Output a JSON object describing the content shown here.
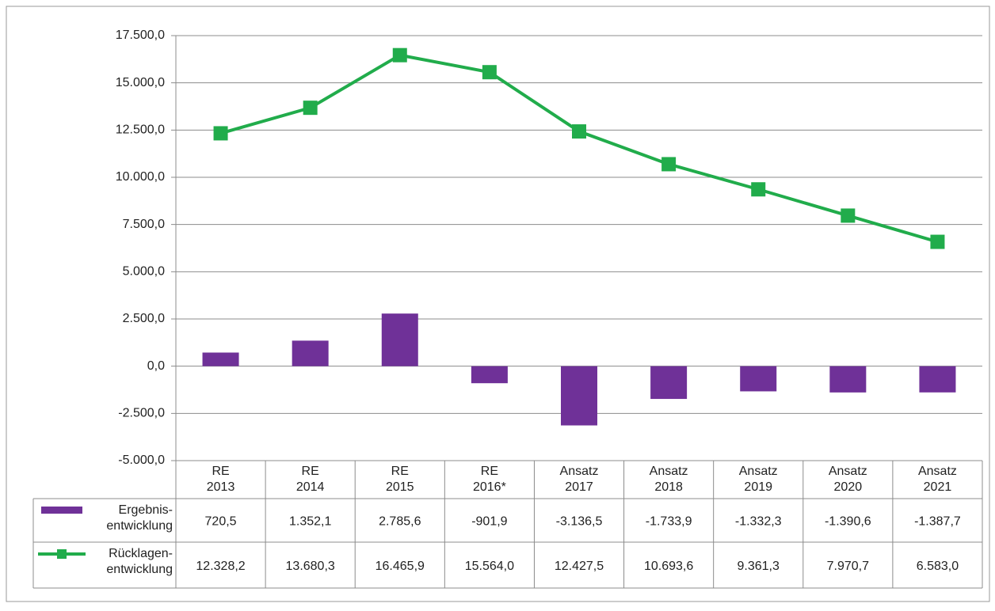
{
  "chart_data": {
    "type": "bar-line",
    "categories": [
      [
        "RE",
        "2013"
      ],
      [
        "RE",
        "2014"
      ],
      [
        "RE",
        "2015"
      ],
      [
        "RE",
        "2016*"
      ],
      [
        "Ansatz",
        "2017"
      ],
      [
        "Ansatz",
        "2018"
      ],
      [
        "Ansatz",
        "2019"
      ],
      [
        "Ansatz",
        "2020"
      ],
      [
        "Ansatz",
        "2021"
      ]
    ],
    "series": [
      {
        "name": [
          "Ergebnis-",
          "entwicklung"
        ],
        "type": "bar",
        "color": "#6f3198",
        "values": [
          720.5,
          1352.1,
          2785.6,
          -901.9,
          -3136.5,
          -1733.9,
          -1332.3,
          -1390.6,
          -1387.7
        ],
        "value_labels": [
          "720,5",
          "1.352,1",
          "2.785,6",
          "-901,9",
          "-3.136,5",
          "-1.733,9",
          "-1.332,3",
          "-1.390,6",
          "-1.387,7"
        ]
      },
      {
        "name": [
          "Rücklagen-",
          "entwicklung"
        ],
        "type": "line",
        "color": "#21ac4b",
        "values": [
          12328.2,
          13680.3,
          16465.9,
          15564.0,
          12427.5,
          10693.6,
          9361.3,
          7970.7,
          6583.0
        ],
        "value_labels": [
          "12.328,2",
          "13.680,3",
          "16.465,9",
          "15.564,0",
          "12.427,5",
          "10.693,6",
          "9.361,3",
          "7.970,7",
          "6.583,0"
        ]
      }
    ],
    "ylim": [
      -5000,
      17500
    ],
    "yticks": [
      {
        "value": -5000,
        "label": "-5.000,0"
      },
      {
        "value": -2500,
        "label": "-2.500,0"
      },
      {
        "value": 0,
        "label": "0,0"
      },
      {
        "value": 2500,
        "label": "2.500,0"
      },
      {
        "value": 5000,
        "label": "5.000,0"
      },
      {
        "value": 7500,
        "label": "7.500,0"
      },
      {
        "value": 10000,
        "label": "10.000,0"
      },
      {
        "value": 12500,
        "label": "12.500,0"
      },
      {
        "value": 15000,
        "label": "15.000,0"
      },
      {
        "value": 17500,
        "label": "17.500,0"
      }
    ],
    "grid": true
  }
}
